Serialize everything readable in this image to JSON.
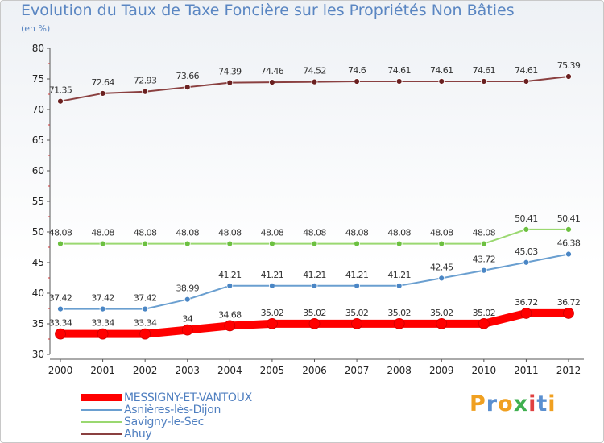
{
  "title": "Evolution du Taux de Taxe Foncière sur les Propriétés Non Bâties",
  "unit_label": "(en %)",
  "logo": {
    "letters": [
      "P",
      "r",
      "o",
      "x",
      "i",
      "t",
      "i"
    ],
    "colors": [
      "#f0a020",
      "#5a8fd0",
      "#f0a020",
      "#40b050",
      "#e04040",
      "#5a8fd0",
      "#f0a020"
    ]
  },
  "chart_data": {
    "type": "line",
    "title": "Evolution du Taux de Taxe Foncière sur les Propriétés Non Bâties",
    "ylabel": "(en %)",
    "xlabel": "",
    "ylim": [
      30,
      80
    ],
    "yticks": [
      30,
      35,
      40,
      45,
      50,
      55,
      60,
      65,
      70,
      75,
      80
    ],
    "categories": [
      "2000",
      "2001",
      "2002",
      "2003",
      "2004",
      "2005",
      "2006",
      "2007",
      "2008",
      "2009",
      "2010",
      "2011",
      "2012"
    ],
    "grid": false,
    "legend_position": "bottom-left",
    "series": [
      {
        "name": "MESSIGNY-ET-VANTOUX",
        "color": "#ff0000",
        "marker": "#ff0000",
        "width": 10,
        "values": [
          33.34,
          33.34,
          33.34,
          34,
          34.68,
          35.02,
          35.02,
          35.02,
          35.02,
          35.02,
          35.02,
          36.72,
          36.72
        ],
        "labels": [
          "33.34",
          "33.34",
          "33.34",
          "34",
          "34.68",
          "35.02",
          "35.02",
          "35.02",
          "35.02",
          "35.02",
          "35.02",
          "36.72",
          "36.72"
        ]
      },
      {
        "name": "Asnières-lès-Dijon",
        "color": "#6a9fd0",
        "marker": "#4a86c5",
        "width": 2,
        "values": [
          37.42,
          37.42,
          37.42,
          38.99,
          41.21,
          41.21,
          41.21,
          41.21,
          41.21,
          42.45,
          43.72,
          45.03,
          46.38
        ],
        "labels": [
          "37.42",
          "37.42",
          "37.42",
          "38.99",
          "41.21",
          "41.21",
          "41.21",
          "41.21",
          "41.21",
          "42.45",
          "43.72",
          "45.03",
          "46.38"
        ]
      },
      {
        "name": "Savigny-le-Sec",
        "color": "#9ad870",
        "marker": "#6cc040",
        "width": 2,
        "values": [
          48.08,
          48.08,
          48.08,
          48.08,
          48.08,
          48.08,
          48.08,
          48.08,
          48.08,
          48.08,
          48.08,
          50.41,
          50.41
        ],
        "labels": [
          "48.08",
          "48.08",
          "48.08",
          "48.08",
          "48.08",
          "48.08",
          "48.08",
          "48.08",
          "48.08",
          "48.08",
          "48.08",
          "50.41",
          "50.41"
        ]
      },
      {
        "name": "Ahuy",
        "color": "#8a4040",
        "marker": "#6a2020",
        "width": 2,
        "values": [
          71.35,
          72.64,
          72.93,
          73.66,
          74.39,
          74.46,
          74.52,
          74.6,
          74.61,
          74.61,
          74.61,
          74.61,
          75.39
        ],
        "labels": [
          "71.35",
          "72.64",
          "72.93",
          "73.66",
          "74.39",
          "74.46",
          "74.52",
          "74.6",
          "74.61",
          "74.61",
          "74.61",
          "74.61",
          "75.39"
        ]
      }
    ]
  }
}
